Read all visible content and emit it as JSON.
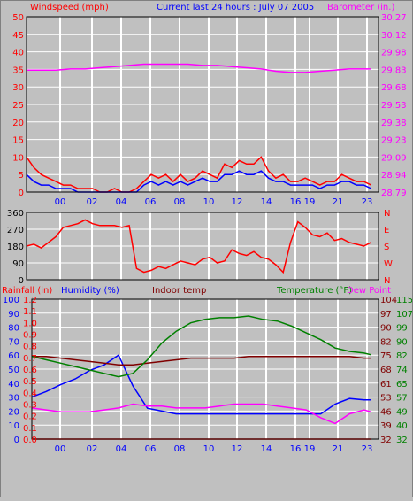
{
  "colors": {
    "background": "#c0c0c0",
    "frame": "#000000",
    "grid": "#ffffff",
    "wind": "#ff0000",
    "gust_series": "#0000ff",
    "barometer": "#ff00ff",
    "direction": "#ff0000",
    "humidity": "#0000ff",
    "rainfall": "#ff0000",
    "indoor_temp": "#800000",
    "temperature": "#008000",
    "dew_point": "#ff00ff",
    "time_labels": "#0000ff"
  },
  "header": {
    "wind_label": "Windspeed (mph)",
    "title": "Current last 24 hours : July 07 2005",
    "baro_label": "Barometer (in.)"
  },
  "bottom_header": {
    "rain_label": "Rainfall (in)",
    "humidity_label": "Humidity (%)",
    "indoor_label": "Indoor temp",
    "temp_label": "Temperature (°F)",
    "dew_label": "Dew Point"
  },
  "chart_data": [
    {
      "type": "line",
      "id": "wind",
      "title": "Current last 24 hours : July 07 2005",
      "ylabel": "Windspeed (mph)",
      "y2label": "Barometer (in.)",
      "xticks": [
        "00",
        "02",
        "04",
        "06",
        "08",
        "10",
        "12",
        "14",
        "16",
        "19",
        "21",
        "23"
      ],
      "yticks": [
        "0",
        "5",
        "10",
        "15",
        "20",
        "25",
        "30",
        "35",
        "40",
        "45",
        "50"
      ],
      "ylim": [
        0,
        50
      ],
      "y2ticks": [
        "28.79",
        "28.94",
        "29.09",
        "29.23",
        "29.38",
        "29.53",
        "29.68",
        "29.83",
        "29.98",
        "30.12",
        "30.27"
      ],
      "y2lim": [
        28.79,
        30.27
      ],
      "grid": true,
      "series": [
        {
          "role": "windspeed",
          "color": "#ff0000",
          "x": [
            0,
            0.5,
            1,
            1.5,
            2,
            2.5,
            3,
            3.5,
            4,
            4.5,
            5,
            5.5,
            6,
            6.5,
            7,
            7.5,
            8,
            8.5,
            9,
            9.5,
            10,
            10.5,
            11,
            11.5,
            12,
            12.5,
            13,
            13.5,
            14,
            14.5,
            15,
            15.5,
            16,
            16.5,
            17,
            17.5,
            18,
            18.5,
            19,
            19.5,
            20,
            20.5,
            21,
            21.5,
            22,
            22.5,
            23,
            23.5
          ],
          "values": [
            10,
            7,
            5,
            4,
            3,
            2,
            2,
            1,
            1,
            1,
            0,
            0,
            1,
            0,
            0,
            1,
            3,
            5,
            4,
            5,
            3,
            5,
            3,
            4,
            6,
            5,
            4,
            8,
            7,
            9,
            8,
            8,
            10,
            6,
            4,
            5,
            3,
            3,
            4,
            3,
            2,
            3,
            3,
            5,
            4,
            3,
            3,
            2
          ]
        },
        {
          "role": "gust",
          "color": "#0000ff",
          "x": [
            0,
            0.5,
            1,
            1.5,
            2,
            2.5,
            3,
            3.5,
            4,
            4.5,
            5,
            5.5,
            6,
            6.5,
            7,
            7.5,
            8,
            8.5,
            9,
            9.5,
            10,
            10.5,
            11,
            11.5,
            12,
            12.5,
            13,
            13.5,
            14,
            14.5,
            15,
            15.5,
            16,
            16.5,
            17,
            17.5,
            18,
            18.5,
            19,
            19.5,
            20,
            20.5,
            21,
            21.5,
            22,
            22.5,
            23,
            23.5
          ],
          "values": [
            5,
            3,
            2,
            2,
            1,
            1,
            1,
            0,
            0,
            0,
            0,
            0,
            0,
            0,
            0,
            0,
            2,
            3,
            2,
            3,
            2,
            3,
            2,
            3,
            4,
            3,
            3,
            5,
            5,
            6,
            5,
            5,
            6,
            4,
            3,
            3,
            2,
            2,
            2,
            2,
            1,
            2,
            2,
            3,
            3,
            2,
            2,
            1
          ]
        },
        {
          "role": "barometer",
          "color": "#ff00ff",
          "x": [
            0,
            1,
            2,
            3,
            4,
            5,
            6,
            7,
            8,
            9,
            10,
            11,
            12,
            13,
            14,
            15,
            16,
            17,
            18,
            19,
            20,
            21,
            22,
            23,
            23.5
          ],
          "values": [
            29.82,
            29.82,
            29.82,
            29.83,
            29.83,
            29.84,
            29.85,
            29.86,
            29.87,
            29.87,
            29.87,
            29.87,
            29.86,
            29.86,
            29.85,
            29.84,
            29.83,
            29.81,
            29.8,
            29.8,
            29.81,
            29.82,
            29.83,
            29.83,
            29.83
          ]
        }
      ]
    },
    {
      "type": "line",
      "id": "direction",
      "yticks": [
        "0",
        "90",
        "180",
        "270",
        "360"
      ],
      "ylim": [
        0,
        360
      ],
      "y2ticks": [
        "N",
        "W",
        "S",
        "E",
        "N"
      ],
      "grid": true,
      "series": [
        {
          "role": "wind-direction",
          "color": "#ff0000",
          "x": [
            0,
            0.5,
            1,
            1.5,
            2,
            2.5,
            3,
            3.5,
            4,
            4.5,
            5,
            5.5,
            6,
            6.5,
            7,
            7.5,
            8,
            8.5,
            9,
            9.5,
            10,
            10.5,
            11,
            11.5,
            12,
            12.5,
            13,
            13.5,
            14,
            14.5,
            15,
            15.5,
            16,
            16.5,
            17,
            17.5,
            18,
            18.5,
            19,
            19.5,
            20,
            20.5,
            21,
            21.5,
            22,
            22.5,
            23,
            23.5
          ],
          "values": [
            180,
            190,
            170,
            200,
            230,
            280,
            290,
            300,
            320,
            300,
            290,
            290,
            290,
            280,
            290,
            60,
            40,
            50,
            70,
            60,
            80,
            100,
            90,
            80,
            110,
            120,
            90,
            100,
            160,
            140,
            130,
            150,
            120,
            110,
            80,
            40,
            200,
            310,
            280,
            240,
            230,
            250,
            210,
            220,
            200,
            190,
            180,
            200
          ]
        }
      ]
    },
    {
      "type": "line",
      "id": "climate",
      "xticks": [
        "00",
        "02",
        "04",
        "06",
        "08",
        "10",
        "12",
        "14",
        "16",
        "19",
        "21",
        "23"
      ],
      "rain_ticks": [
        "0.0",
        "0.1",
        "0.2",
        "0.3",
        "0.4",
        "0.5",
        "0.6",
        "0.7",
        "0.8",
        "0.9",
        "1.0",
        "1.1",
        "1.2"
      ],
      "humidity_ticks": [
        "0",
        "10",
        "20",
        "30",
        "40",
        "50",
        "60",
        "70",
        "80",
        "90",
        "100"
      ],
      "temp_ticks": [
        "32",
        "40",
        "49",
        "57",
        "65",
        "74",
        "82",
        "90",
        "99",
        "107",
        "115"
      ],
      "dew_ticks": [
        "32",
        "39",
        "46",
        "53",
        "61",
        "68",
        "75",
        "82",
        "90",
        "97",
        "104"
      ],
      "humidity_lim": [
        0,
        100
      ],
      "grid": true,
      "series": [
        {
          "role": "humidity",
          "color": "#0000ff",
          "x": [
            0,
            1,
            2,
            3,
            4,
            5,
            6,
            7,
            8,
            9,
            10,
            11,
            12,
            13,
            14,
            15,
            16,
            17,
            18,
            19,
            20,
            21,
            22,
            23,
            23.5
          ],
          "values": [
            30,
            34,
            39,
            43,
            49,
            53,
            60,
            38,
            22,
            20,
            18,
            18,
            18,
            18,
            18,
            18,
            18,
            18,
            18,
            18,
            18,
            25,
            29,
            28,
            28
          ]
        },
        {
          "role": "rainfall",
          "color": "#ff0000",
          "x": [
            0,
            23.5
          ],
          "values": [
            0,
            0
          ]
        },
        {
          "role": "indoor-temp",
          "color": "#800000",
          "x": [
            0,
            1,
            2,
            3,
            4,
            5,
            6,
            7,
            8,
            9,
            10,
            11,
            12,
            13,
            14,
            15,
            16,
            17,
            18,
            19,
            20,
            21,
            22,
            23,
            23.5
          ],
          "values": [
            81,
            81,
            80,
            79,
            78,
            77,
            76,
            76,
            77,
            78,
            79,
            80,
            80,
            80,
            80,
            81,
            81,
            81,
            81,
            81,
            81,
            81,
            81,
            80,
            80
          ]
        },
        {
          "role": "temperature",
          "color": "#008000",
          "x": [
            0,
            1,
            2,
            3,
            4,
            5,
            6,
            7,
            8,
            9,
            10,
            11,
            12,
            13,
            14,
            15,
            16,
            17,
            18,
            19,
            20,
            21,
            22,
            23,
            23.5
          ],
          "values": [
            81,
            79,
            77,
            75,
            73,
            71,
            69,
            71,
            79,
            89,
            96,
            101,
            103,
            104,
            104,
            105,
            103,
            102,
            99,
            95,
            91,
            86,
            84,
            83,
            82
          ]
        },
        {
          "role": "dew-point",
          "color": "#ff00ff",
          "x": [
            0,
            1,
            2,
            3,
            4,
            5,
            6,
            7,
            8,
            9,
            10,
            11,
            12,
            13,
            14,
            15,
            16,
            17,
            18,
            19,
            20,
            21,
            22,
            23,
            23.5
          ],
          "values": [
            48,
            47,
            46,
            46,
            46,
            47,
            48,
            50,
            49,
            49,
            48,
            48,
            48,
            49,
            50,
            50,
            50,
            49,
            48,
            47,
            43,
            40,
            45,
            47,
            46
          ]
        }
      ]
    }
  ]
}
